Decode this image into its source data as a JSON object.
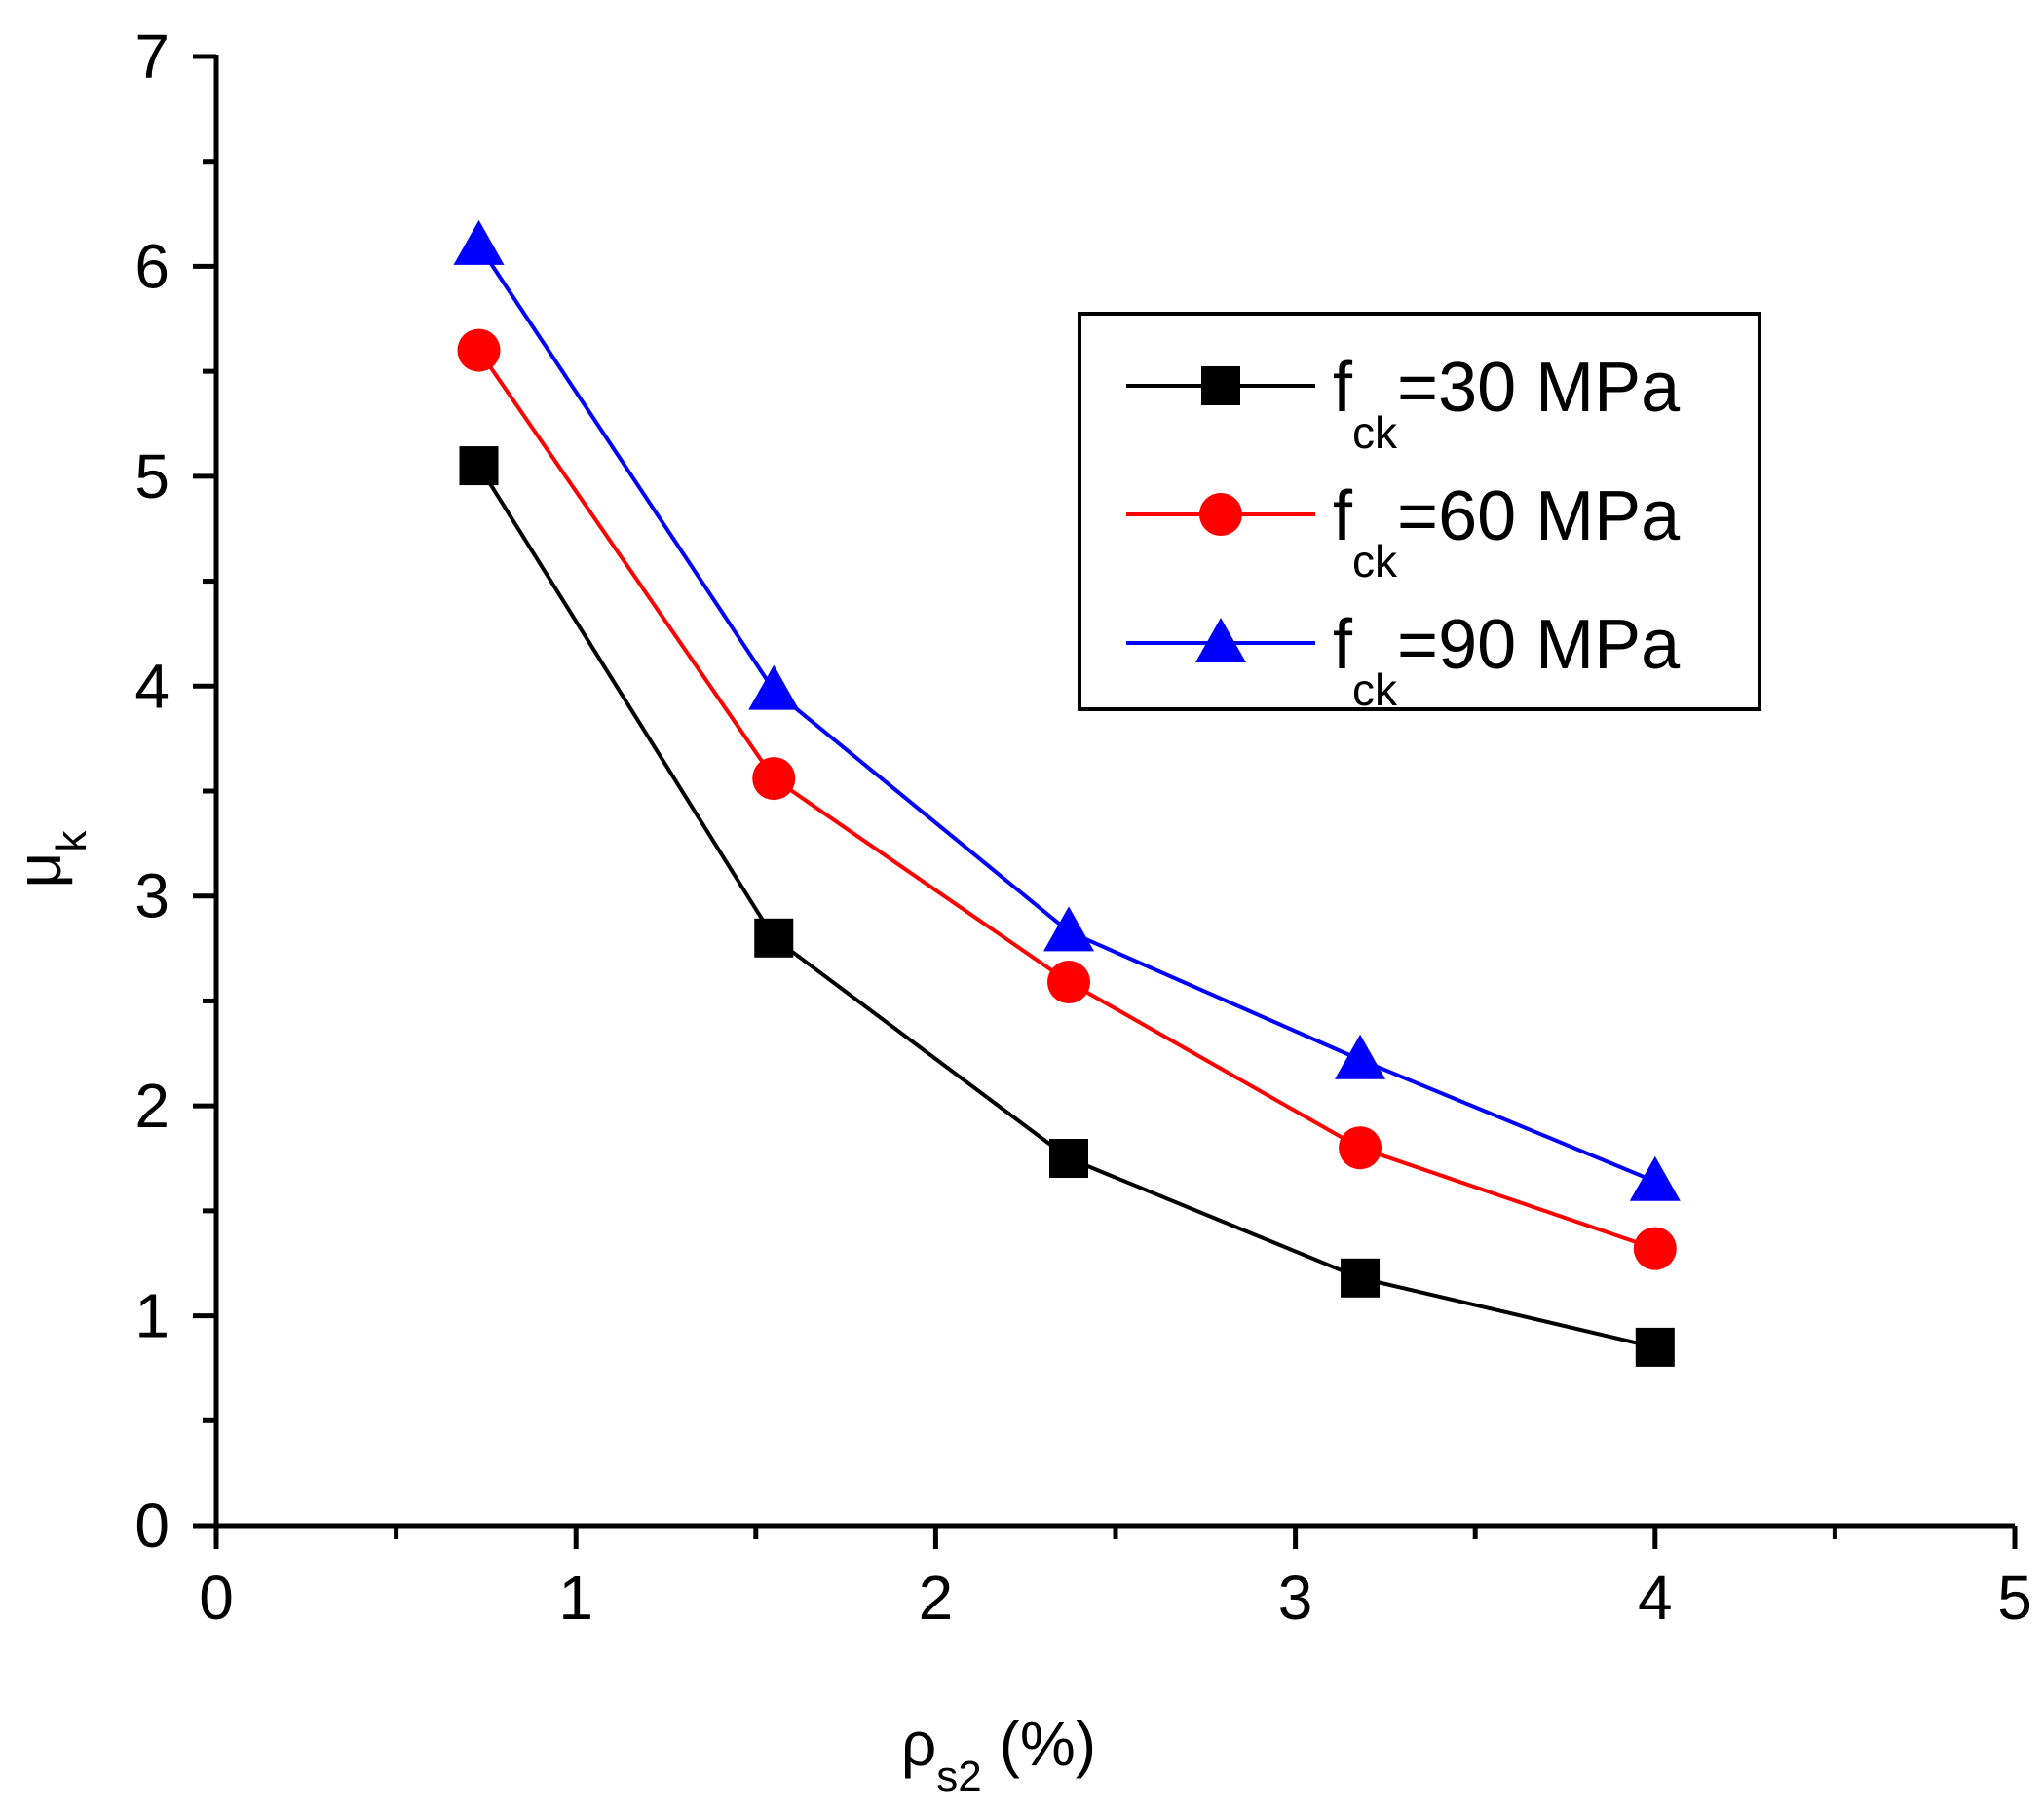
{
  "chart_data": {
    "type": "line",
    "title": "",
    "xlabel": {
      "main": "ρ",
      "sub": "s2",
      "suffix": " (%)"
    },
    "ylabel": {
      "main": "μ",
      "sub": "k"
    },
    "xlim": [
      0,
      5
    ],
    "ylim": [
      0,
      7
    ],
    "x_major_ticks": [
      0,
      1,
      2,
      3,
      4,
      5
    ],
    "x_minor_ticks": [
      0.5,
      1.5,
      2.5,
      3.5,
      4.5
    ],
    "y_major_ticks": [
      0,
      1,
      2,
      3,
      4,
      5,
      6,
      7
    ],
    "y_minor_ticks": [
      0.5,
      1.5,
      2.5,
      3.5,
      4.5,
      5.5,
      6.5
    ],
    "grid": false,
    "legend": "top-right",
    "x": [
      0.73,
      1.55,
      2.37,
      3.18,
      4.0
    ],
    "series": [
      {
        "name": {
          "main": "f",
          "sub": "ck",
          "rest": "=30 MPa"
        },
        "marker": "square",
        "color": "#000000",
        "values": [
          5.05,
          2.8,
          1.75,
          1.18,
          0.85
        ]
      },
      {
        "name": {
          "main": "f",
          "sub": "ck",
          "rest": "=60 MPa"
        },
        "marker": "circle",
        "color": "#ff0000",
        "values": [
          5.6,
          3.56,
          2.59,
          1.8,
          1.32
        ]
      },
      {
        "name": {
          "main": "f",
          "sub": "ck",
          "rest": "=90 MPa"
        },
        "marker": "triangle",
        "color": "#0000ff",
        "values": [
          6.1,
          3.98,
          2.83,
          2.22,
          1.64
        ]
      }
    ]
  }
}
